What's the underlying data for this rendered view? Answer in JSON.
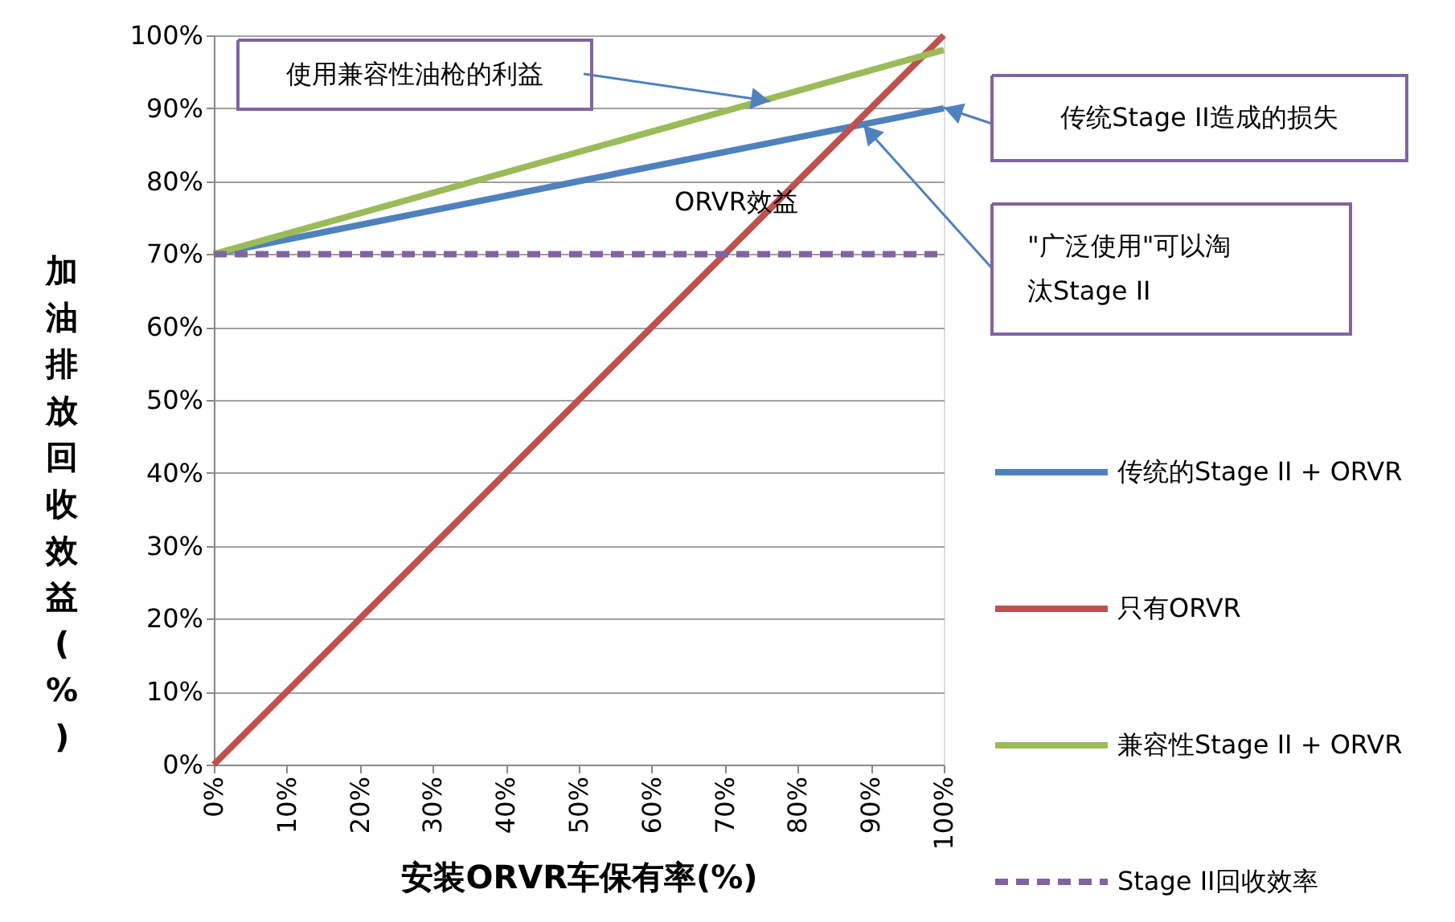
{
  "chart_data": {
    "type": "line",
    "xlabel": "安装ORVR车保有率(%)",
    "ylabel": "加油排放回收效益(%)",
    "x": [
      0,
      100
    ],
    "series": [
      {
        "name": "传统的Stage II + ORVR",
        "color": "#4f81bd",
        "values": [
          70,
          90
        ]
      },
      {
        "name": "只有ORVR",
        "color": "#c0504d",
        "values": [
          0,
          100
        ]
      },
      {
        "name": "兼容性Stage II + ORVR",
        "color": "#9bbb59",
        "values": [
          70,
          98
        ]
      },
      {
        "name": "Stage II回收效率",
        "color": "#8064a2",
        "values": [
          70,
          70
        ],
        "line_style": "dashed"
      }
    ],
    "xlim": [
      0,
      100
    ],
    "ylim": [
      0,
      100
    ],
    "xticks": [
      {
        "value": 0,
        "label": "0%"
      },
      {
        "value": 10,
        "label": "10%"
      },
      {
        "value": 20,
        "label": "20%"
      },
      {
        "value": 30,
        "label": "30%"
      },
      {
        "value": 40,
        "label": "40%"
      },
      {
        "value": 50,
        "label": "50%"
      },
      {
        "value": 60,
        "label": "60%"
      },
      {
        "value": 70,
        "label": "70%"
      },
      {
        "value": 80,
        "label": "80%"
      },
      {
        "value": 90,
        "label": "90%"
      },
      {
        "value": 100,
        "label": "100%"
      }
    ],
    "yticks": [
      {
        "value": 0,
        "label": "0%"
      },
      {
        "value": 10,
        "label": "10%"
      },
      {
        "value": 20,
        "label": "20%"
      },
      {
        "value": 30,
        "label": "30%"
      },
      {
        "value": 40,
        "label": "40%"
      },
      {
        "value": 50,
        "label": "50%"
      },
      {
        "value": 60,
        "label": "60%"
      },
      {
        "value": 70,
        "label": "70%"
      },
      {
        "value": 80,
        "label": "80%"
      },
      {
        "value": 90,
        "label": "90%"
      },
      {
        "value": 100,
        "label": "100%"
      }
    ],
    "annotations": [
      "使用兼容性油枪的利益",
      "传统Stage II造成的损失",
      "\"广泛使用\"可以淘汰Stage II",
      "ORVR效益"
    ],
    "grid": "y",
    "legend": "right",
    "marker": "none",
    "line_style": "solid"
  }
}
